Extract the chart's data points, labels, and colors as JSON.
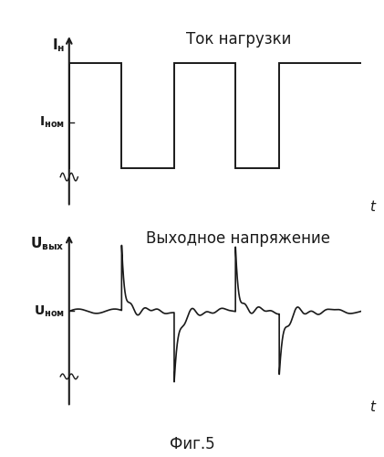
{
  "title1": "Ток нагрузки",
  "title2": "Выходное напряжение",
  "fig_label": "Фиг.5",
  "bg_color": "#ffffff",
  "line_color": "#1a1a1a",
  "font_size_title": 12,
  "font_size_label": 11
}
